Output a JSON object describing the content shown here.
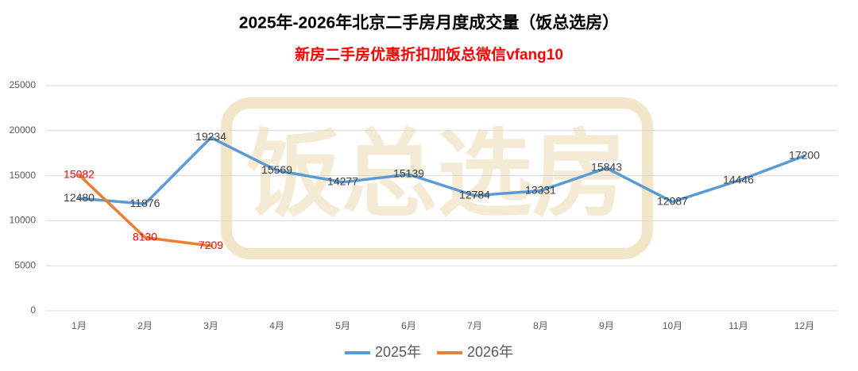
{
  "chart_data": {
    "type": "line",
    "title": "2025年-2026年北京二手房月度成交量（饭总选房）",
    "subtitle": "新房二手房优惠折扣加饭总微信vfang10",
    "watermark": "饭总选房",
    "categories": [
      "1月",
      "2月",
      "3月",
      "4月",
      "5月",
      "6月",
      "7月",
      "8月",
      "9月",
      "10月",
      "11月",
      "12月"
    ],
    "series": [
      {
        "name": "2025年",
        "color": "#5b9bd5",
        "label_color": "#404040",
        "values": [
          12480,
          11876,
          19234,
          15569,
          14277,
          15139,
          12784,
          13331,
          15843,
          12087,
          14446,
          17200
        ]
      },
      {
        "name": "2026年",
        "color": "#ed7d31",
        "label_color": "#ff0000",
        "values": [
          15082,
          8130,
          7209,
          null,
          null,
          null,
          null,
          null,
          null,
          null,
          null,
          null
        ]
      }
    ],
    "ylim": [
      0,
      25000
    ],
    "yticks": [
      0,
      5000,
      10000,
      15000,
      20000,
      25000
    ],
    "grid": true,
    "legend": "bottom"
  }
}
